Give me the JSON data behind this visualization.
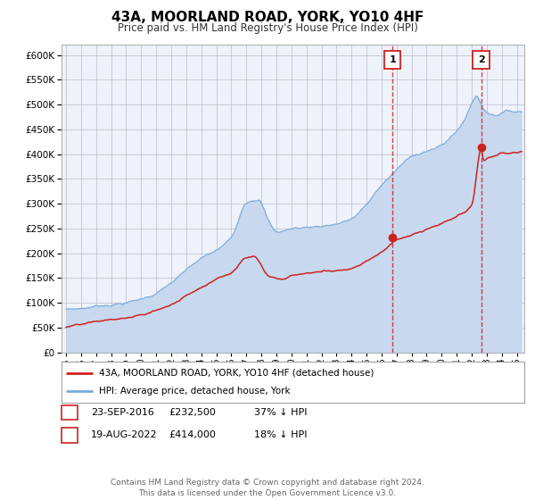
{
  "title": "43A, MOORLAND ROAD, YORK, YO10 4HF",
  "subtitle": "Price paid vs. HM Land Registry's House Price Index (HPI)",
  "title_fontsize": 11,
  "subtitle_fontsize": 8.5,
  "background_color": "#ffffff",
  "plot_bg_color": "#eef2fa",
  "grid_color": "#bbbbcc",
  "hpi_color": "#7aaadd",
  "hpi_fill_color": "#c8d8ee",
  "property_color": "#cc2222",
  "ylim": [
    0,
    620000
  ],
  "xlim_start": 1994.7,
  "xlim_end": 2025.5,
  "yticks": [
    0,
    50000,
    100000,
    150000,
    200000,
    250000,
    300000,
    350000,
    400000,
    450000,
    500000,
    550000,
    600000
  ],
  "xticks": [
    1995,
    1996,
    1997,
    1998,
    1999,
    2000,
    2001,
    2002,
    2003,
    2004,
    2005,
    2006,
    2007,
    2008,
    2009,
    2010,
    2011,
    2012,
    2013,
    2014,
    2015,
    2016,
    2017,
    2018,
    2019,
    2020,
    2021,
    2022,
    2023,
    2024,
    2025
  ],
  "event1_x": 2016.73,
  "event1_price": 232500,
  "event1_date": "23-SEP-2016",
  "event1_hpi_pct": "37%",
  "event2_x": 2022.63,
  "event2_price": 414000,
  "event2_date": "19-AUG-2022",
  "event2_hpi_pct": "18%",
  "legend_property": "43A, MOORLAND ROAD, YORK, YO10 4HF (detached house)",
  "legend_hpi": "HPI: Average price, detached house, York",
  "footer": "Contains HM Land Registry data © Crown copyright and database right 2024.\nThis data is licensed under the Open Government Licence v3.0.",
  "footer_fontsize": 6.5
}
